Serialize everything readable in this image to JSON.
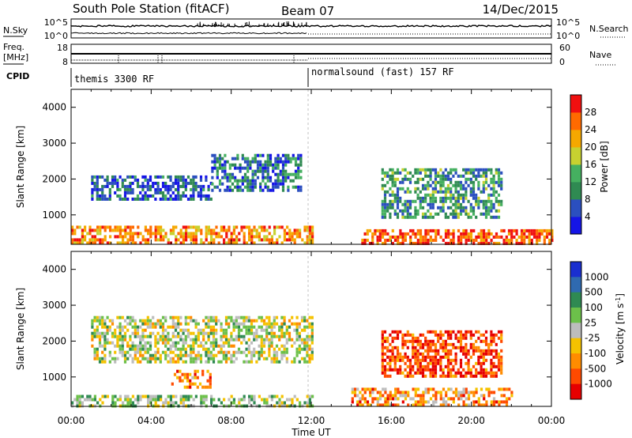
{
  "header": {
    "station": "South Pole Station (fitACF)",
    "beam": "Beam 07",
    "date": "14/Dec/2015"
  },
  "chart_data": [
    {
      "type": "line",
      "panel": "noise",
      "left_label": "N.Sky",
      "right_label": "N.Search",
      "left_ticks": [
        "10^5",
        "10^0"
      ],
      "right_ticks": [
        "10^5",
        "10^0"
      ]
    },
    {
      "type": "line",
      "panel": "frequency",
      "left_label_top": "Freq.",
      "left_label_unit": "[MHz]",
      "right_label": "Nave",
      "left_ticks": [
        "18",
        "8"
      ],
      "right_ticks": [
        "60",
        "0"
      ]
    },
    {
      "type": "table",
      "panel": "cpid",
      "label": "CPID",
      "programs": [
        {
          "name": "themis 3300 RF",
          "start_hour": 0
        },
        {
          "name": "normalsound (fast) 157 RF",
          "start_hour": 12
        }
      ]
    },
    {
      "type": "heatmap",
      "panel": "power",
      "ylabel": "Slant Range [km]",
      "ylim": [
        180,
        4500
      ],
      "yticks": [
        "1000",
        "2000",
        "3000",
        "4000"
      ],
      "xlim": [
        0,
        24
      ],
      "colorbar": {
        "label": "Power [dB]",
        "ticks": [
          "4",
          "8",
          "12",
          "16",
          "20",
          "24",
          "28"
        ],
        "colors": [
          "#1515e6",
          "#2b4fbf",
          "#2f8a52",
          "#45b060",
          "#c7d130",
          "#f5a800",
          "#ff6a00",
          "#f01010"
        ]
      },
      "regions": [
        {
          "t0": 0.0,
          "t1": 12.0,
          "r0": 180,
          "r1": 700,
          "level": 0.75
        },
        {
          "t0": 1.0,
          "t1": 7.0,
          "r0": 1400,
          "r1": 2100,
          "level": 0.2
        },
        {
          "t0": 7.0,
          "t1": 11.5,
          "r0": 1700,
          "r1": 2700,
          "level": 0.25
        },
        {
          "t0": 14.5,
          "t1": 24.0,
          "r0": 180,
          "r1": 600,
          "level": 0.85
        },
        {
          "t0": 15.5,
          "t1": 21.5,
          "r0": 900,
          "r1": 2300,
          "level": 0.35
        }
      ]
    },
    {
      "type": "heatmap",
      "panel": "velocity",
      "ylabel": "Slant Range [km]",
      "xlabel": "Time UT",
      "ylim": [
        180,
        4500
      ],
      "yticks": [
        "1000",
        "2000",
        "3000",
        "4000"
      ],
      "xlim": [
        0,
        24
      ],
      "xticks": [
        "00:00",
        "04:00",
        "08:00",
        "12:00",
        "16:00",
        "20:00",
        "00:00"
      ],
      "colorbar": {
        "label": "Velocity [m s^-1]",
        "ticks": [
          "1000",
          "500",
          "100",
          "25",
          "-25",
          "-100",
          "-500",
          "-1000"
        ],
        "colors": [
          "#1a2fd0",
          "#2f6ab0",
          "#2f8a52",
          "#6cc04a",
          "#bdbdbd",
          "#f5c200",
          "#ff8c00",
          "#ff4a00",
          "#e60000"
        ]
      },
      "regions": [
        {
          "t0": 1.0,
          "t1": 12.0,
          "r0": 1400,
          "r1": 2700,
          "level": 0.5
        },
        {
          "t0": 0.0,
          "t1": 12.0,
          "r0": 180,
          "r1": 500,
          "level": 0.45
        },
        {
          "t0": 5.0,
          "t1": 7.0,
          "r0": 700,
          "r1": 1200,
          "level": 0.75
        },
        {
          "t0": 15.5,
          "t1": 21.5,
          "r0": 1000,
          "r1": 2300,
          "level": 0.85
        },
        {
          "t0": 14.0,
          "t1": 22.0,
          "r0": 180,
          "r1": 700,
          "level": 0.7
        }
      ]
    }
  ]
}
